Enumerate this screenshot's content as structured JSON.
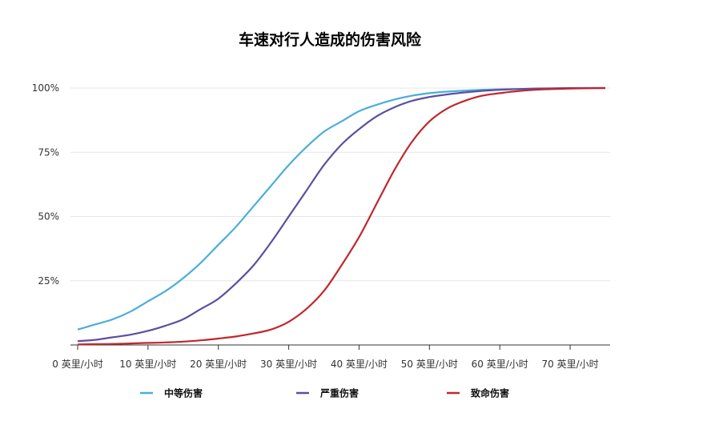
{
  "chart_data": {
    "type": "line",
    "title": "车速对行人造成的伤害风险",
    "xlabel": "",
    "ylabel": "",
    "xlim": [
      0,
      75
    ],
    "ylim": [
      0,
      100
    ],
    "x_ticks": [
      0,
      10,
      20,
      30,
      40,
      50,
      60,
      70
    ],
    "x_tick_labels": [
      "0 英里/小时",
      "10 英里/小时",
      "20 英里/小时",
      "30 英里/小时",
      "40 英里/小时",
      "50 英里/小时",
      "60 英里/小时",
      "70 英里/小时"
    ],
    "y_ticks": [
      25,
      50,
      75,
      100
    ],
    "y_tick_labels": [
      "25%",
      "50%",
      "75%",
      "100%"
    ],
    "grid": "horizontal",
    "legend_position": "bottom",
    "x": [
      0,
      2.5,
      5,
      7.5,
      10,
      12.5,
      15,
      17.5,
      20,
      22.5,
      25,
      27.5,
      30,
      32.5,
      35,
      37.5,
      40,
      42.5,
      45,
      47.5,
      50,
      52.5,
      55,
      57.5,
      60,
      62.5,
      65,
      67.5,
      70,
      72.5,
      75
    ],
    "series": [
      {
        "name": "中等伤害",
        "color": "#4aaed9",
        "values": [
          6,
          8,
          10,
          13,
          17,
          21,
          26,
          32,
          39,
          46,
          54,
          62,
          70,
          77,
          83,
          87,
          91,
          93.5,
          95.5,
          97,
          98,
          98.6,
          99,
          99.3,
          99.5,
          99.6,
          99.7,
          99.8,
          99.9,
          100,
          100
        ]
      },
      {
        "name": "严重伤害",
        "color": "#5b4fa0",
        "values": [
          1.5,
          2,
          3,
          4,
          5.5,
          7.5,
          10,
          14,
          18,
          24,
          31,
          40,
          50,
          60,
          70,
          78,
          84,
          89,
          92.5,
          95,
          96.5,
          97.5,
          98.3,
          98.9,
          99.3,
          99.6,
          99.8,
          99.9,
          100,
          100,
          100
        ]
      },
      {
        "name": "致命伤害",
        "color": "#c0272d",
        "values": [
          0.2,
          0.3,
          0.4,
          0.6,
          0.8,
          1,
          1.3,
          1.8,
          2.5,
          3.3,
          4.5,
          6,
          9,
          14,
          21,
          31,
          42,
          55,
          68,
          79,
          87,
          92,
          95,
          97,
          98,
          98.8,
          99.3,
          99.6,
          99.8,
          99.9,
          100
        ]
      }
    ]
  }
}
